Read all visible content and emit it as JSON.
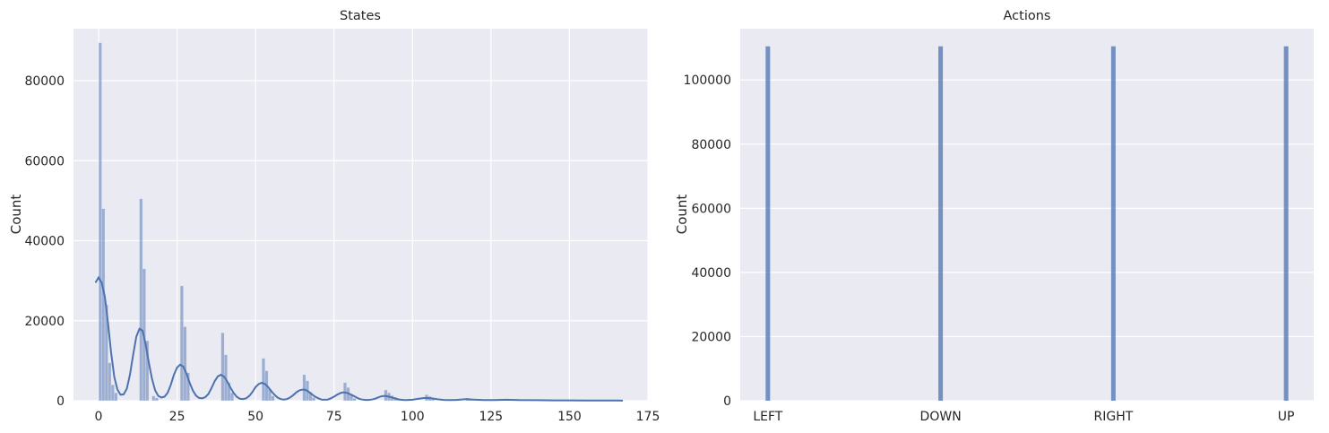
{
  "colors": {
    "figure_bg": "#ffffff",
    "axes_bg": "#eaeaf2",
    "grid": "#ffffff",
    "hist_fill": "#4c72b0",
    "kde_line": "#4c72b0",
    "text": "#262626"
  },
  "chart_data": [
    {
      "type": "bar",
      "title": "States",
      "xlabel": "",
      "ylabel": "Count",
      "xlim": [
        -8,
        175
      ],
      "ylim": [
        0,
        93000
      ],
      "xticks": [
        0,
        25,
        50,
        75,
        100,
        125,
        150,
        175
      ],
      "yticks": [
        0,
        20000,
        40000,
        60000,
        80000
      ],
      "grid": true,
      "bins": [
        {
          "x": 0,
          "y": 89500
        },
        {
          "x": 1,
          "y": 48000
        },
        {
          "x": 2,
          "y": 24000
        },
        {
          "x": 3,
          "y": 9500
        },
        {
          "x": 4,
          "y": 4000
        },
        {
          "x": 5,
          "y": 2000
        },
        {
          "x": 13,
          "y": 50500
        },
        {
          "x": 14,
          "y": 33000
        },
        {
          "x": 15,
          "y": 15000
        },
        {
          "x": 17,
          "y": 1200
        },
        {
          "x": 18,
          "y": 700
        },
        {
          "x": 26,
          "y": 28700
        },
        {
          "x": 27,
          "y": 18500
        },
        {
          "x": 28,
          "y": 7000
        },
        {
          "x": 39,
          "y": 17000
        },
        {
          "x": 40,
          "y": 11500
        },
        {
          "x": 41,
          "y": 4500
        },
        {
          "x": 42,
          "y": 2000
        },
        {
          "x": 52,
          "y": 10600
        },
        {
          "x": 53,
          "y": 7500
        },
        {
          "x": 54,
          "y": 3000
        },
        {
          "x": 55,
          "y": 1200
        },
        {
          "x": 65,
          "y": 6500
        },
        {
          "x": 66,
          "y": 5000
        },
        {
          "x": 67,
          "y": 2200
        },
        {
          "x": 68,
          "y": 800
        },
        {
          "x": 78,
          "y": 4500
        },
        {
          "x": 79,
          "y": 3300
        },
        {
          "x": 80,
          "y": 1600
        },
        {
          "x": 81,
          "y": 600
        },
        {
          "x": 91,
          "y": 2700
        },
        {
          "x": 92,
          "y": 2000
        },
        {
          "x": 93,
          "y": 1300
        },
        {
          "x": 94,
          "y": 900
        },
        {
          "x": 95,
          "y": 400
        },
        {
          "x": 104,
          "y": 1500
        },
        {
          "x": 105,
          "y": 1100
        },
        {
          "x": 106,
          "y": 600
        },
        {
          "x": 117,
          "y": 700
        },
        {
          "x": 118,
          "y": 500
        },
        {
          "x": 130,
          "y": 300
        },
        {
          "x": 131,
          "y": 200
        }
      ],
      "kde": [
        [
          -1,
          29500
        ],
        [
          0,
          30800
        ],
        [
          1,
          29500
        ],
        [
          2,
          26000
        ],
        [
          3,
          19500
        ],
        [
          4,
          12000
        ],
        [
          5,
          6000
        ],
        [
          6,
          2800
        ],
        [
          7,
          1500
        ],
        [
          8,
          1600
        ],
        [
          9,
          3000
        ],
        [
          10,
          6500
        ],
        [
          11,
          11500
        ],
        [
          12,
          16000
        ],
        [
          13,
          18000
        ],
        [
          14,
          17500
        ],
        [
          15,
          14000
        ],
        [
          16,
          9500
        ],
        [
          17,
          5500
        ],
        [
          18,
          2600
        ],
        [
          19,
          1200
        ],
        [
          20,
          800
        ],
        [
          21,
          1000
        ],
        [
          22,
          2000
        ],
        [
          23,
          4000
        ],
        [
          24,
          6500
        ],
        [
          25,
          8300
        ],
        [
          26,
          9000
        ],
        [
          27,
          8500
        ],
        [
          28,
          6800
        ],
        [
          29,
          4500
        ],
        [
          30,
          2600
        ],
        [
          31,
          1300
        ],
        [
          32,
          700
        ],
        [
          33,
          600
        ],
        [
          34,
          900
        ],
        [
          35,
          1700
        ],
        [
          36,
          3200
        ],
        [
          37,
          4900
        ],
        [
          38,
          6100
        ],
        [
          39,
          6500
        ],
        [
          40,
          6000
        ],
        [
          41,
          4800
        ],
        [
          42,
          3300
        ],
        [
          43,
          2000
        ],
        [
          44,
          1000
        ],
        [
          45,
          500
        ],
        [
          46,
          400
        ],
        [
          47,
          600
        ],
        [
          48,
          1200
        ],
        [
          49,
          2200
        ],
        [
          50,
          3400
        ],
        [
          51,
          4200
        ],
        [
          52,
          4500
        ],
        [
          53,
          4200
        ],
        [
          54,
          3400
        ],
        [
          55,
          2400
        ],
        [
          56,
          1500
        ],
        [
          57,
          800
        ],
        [
          58,
          400
        ],
        [
          59,
          300
        ],
        [
          60,
          400
        ],
        [
          61,
          800
        ],
        [
          62,
          1400
        ],
        [
          63,
          2100
        ],
        [
          64,
          2600
        ],
        [
          65,
          2800
        ],
        [
          66,
          2700
        ],
        [
          67,
          2200
        ],
        [
          68,
          1600
        ],
        [
          69,
          1000
        ],
        [
          70,
          600
        ],
        [
          71,
          300
        ],
        [
          72,
          250
        ],
        [
          73,
          300
        ],
        [
          74,
          600
        ],
        [
          75,
          1000
        ],
        [
          76,
          1500
        ],
        [
          77,
          1900
        ],
        [
          78,
          2100
        ],
        [
          79,
          2000
        ],
        [
          80,
          1700
        ],
        [
          81,
          1300
        ],
        [
          82,
          900
        ],
        [
          83,
          500
        ],
        [
          84,
          300
        ],
        [
          85,
          200
        ],
        [
          86,
          200
        ],
        [
          87,
          300
        ],
        [
          88,
          500
        ],
        [
          89,
          800
        ],
        [
          90,
          1100
        ],
        [
          91,
          1200
        ],
        [
          92,
          1100
        ],
        [
          93,
          900
        ],
        [
          94,
          700
        ],
        [
          95,
          450
        ],
        [
          96,
          300
        ],
        [
          97,
          200
        ],
        [
          98,
          150
        ],
        [
          100,
          250
        ],
        [
          102,
          500
        ],
        [
          104,
          700
        ],
        [
          106,
          600
        ],
        [
          108,
          350
        ],
        [
          110,
          200
        ],
        [
          112,
          150
        ],
        [
          114,
          200
        ],
        [
          117,
          380
        ],
        [
          120,
          250
        ],
        [
          123,
          150
        ],
        [
          126,
          180
        ],
        [
          130,
          250
        ],
        [
          134,
          150
        ],
        [
          140,
          130
        ],
        [
          145,
          100
        ],
        [
          150,
          80
        ],
        [
          155,
          70
        ],
        [
          160,
          50
        ],
        [
          165,
          40
        ],
        [
          167,
          30
        ]
      ]
    },
    {
      "type": "bar",
      "title": "Actions",
      "xlabel": "",
      "ylabel": "Count",
      "xlim": [
        -0.16,
        3.16
      ],
      "ylim": [
        0,
        116000
      ],
      "yticks": [
        0,
        20000,
        40000,
        60000,
        80000,
        100000
      ],
      "grid": true,
      "categories": [
        "LEFT",
        "DOWN",
        "RIGHT",
        "UP"
      ],
      "values": [
        110500,
        110500,
        110500,
        110500
      ]
    }
  ]
}
